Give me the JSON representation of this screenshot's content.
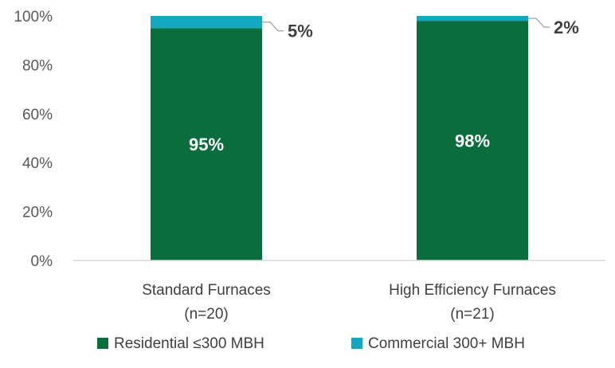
{
  "chart_data": {
    "type": "bar",
    "stacked": true,
    "percent": true,
    "categories": [
      [
        "Standard Furnaces",
        "(n=20)"
      ],
      [
        "High Efficiency Furnaces",
        "(n=21)"
      ]
    ],
    "series": [
      {
        "name": "Residential ≤300 MBH",
        "color": "#0a6e3c",
        "values": [
          95,
          98
        ],
        "labels": [
          "95%",
          "98%"
        ]
      },
      {
        "name": "Commercial 300+ MBH",
        "color": "#14a7c0",
        "values": [
          5,
          2
        ],
        "labels": [
          "5%",
          "2%"
        ]
      }
    ],
    "ylim": [
      0,
      100
    ],
    "yticks": [
      0,
      20,
      40,
      60,
      80,
      100
    ],
    "ytick_labels": [
      "0%",
      "20%",
      "40%",
      "60%",
      "80%",
      "100%"
    ],
    "grid": false,
    "legend": "bottom"
  }
}
